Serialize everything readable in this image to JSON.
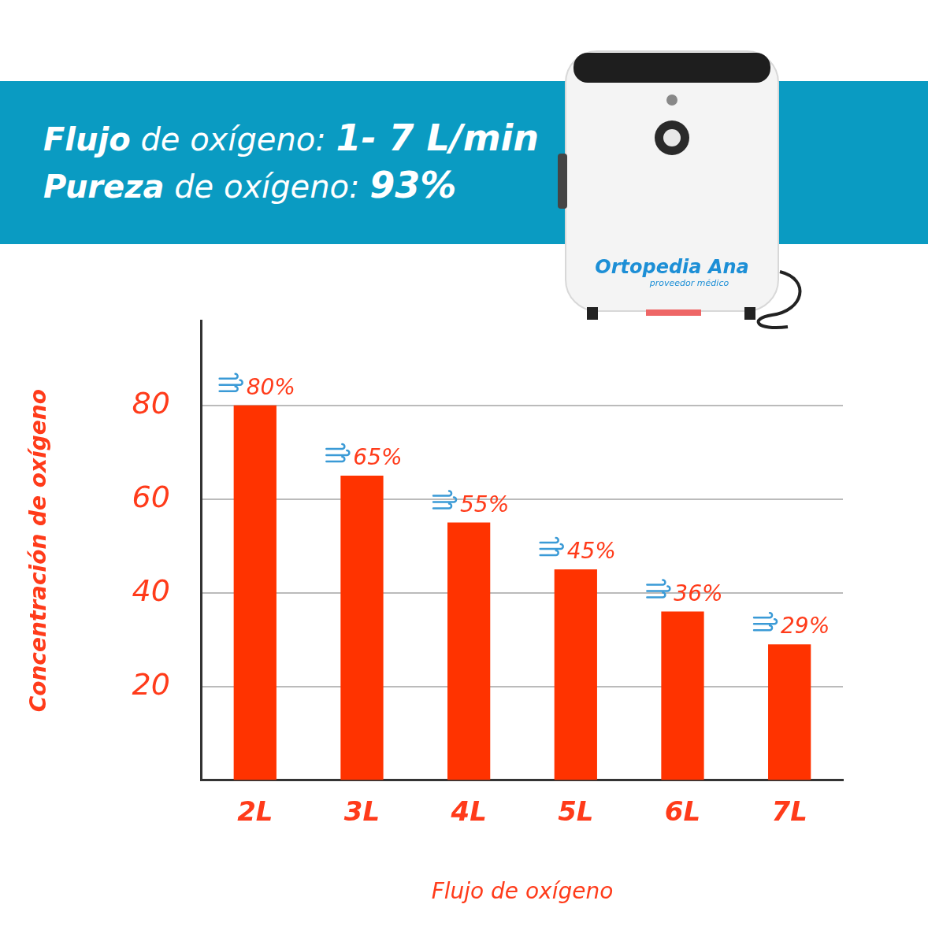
{
  "chart_data": {
    "type": "bar",
    "categories": [
      "2L",
      "3L",
      "4L",
      "5L",
      "6L",
      "7L"
    ],
    "values": [
      80,
      65,
      55,
      45,
      36,
      29
    ],
    "value_labels": [
      "80%",
      "65%",
      "55%",
      "45%",
      "36%",
      "29%"
    ],
    "data_labels": true,
    "color": "#ff3300",
    "x_label": "Flujo de oxígeno",
    "y_label": "Concentración de oxígeno",
    "ylim": [
      0,
      98
    ],
    "yticks": [
      20,
      40,
      60,
      80
    ],
    "grid": true
  },
  "banner": [
    [
      "Flujo",
      "de oxígeno:",
      "1- 7 L/min"
    ],
    [
      "Pureza",
      "de oxígeno:",
      "93%"
    ]
  ],
  "product": {
    "brand": "Ortopedia Ana",
    "tagline": "proveedor médico"
  }
}
